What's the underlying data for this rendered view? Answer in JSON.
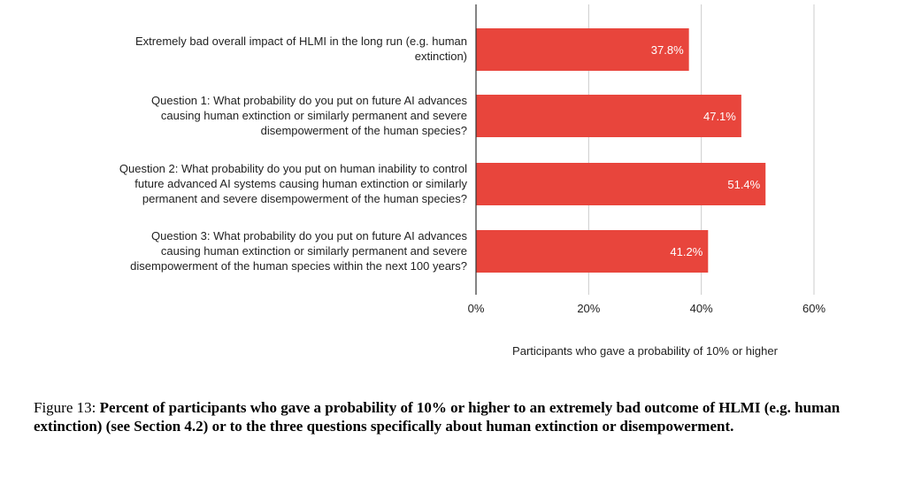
{
  "chart_data": {
    "type": "bar",
    "orientation": "horizontal",
    "categories": [
      "Extremely bad overall impact of HLMI in the long run (e.g. human\nextinction)",
      "Question 1: What probability do you put on future AI advances\ncausing human extinction or similarly permanent and severe\ndisempowerment of the human species?",
      "Question 2: What probability do you put on human inability to control\nfuture advanced AI systems causing human extinction or similarly\npermanent and severe disempowerment of the human species?",
      "Question 3: What probability do you put on future AI advances\ncausing human extinction or similarly permanent and severe\ndisempowerment of the human species within the next 100 years?"
    ],
    "values": [
      37.8,
      47.1,
      51.4,
      41.2
    ],
    "value_labels": [
      "37.8%",
      "47.1%",
      "51.4%",
      "41.2%"
    ],
    "xlim": [
      0,
      60
    ],
    "ticks": [
      0,
      20,
      40,
      60
    ],
    "tick_labels": [
      "0%",
      "20%",
      "40%",
      "60%"
    ],
    "xlabel": "Participants who gave a probability of 10% or higher",
    "ylabel": "",
    "grid": true,
    "bar_color": "#E8453C",
    "label_color": "#ffffff"
  },
  "caption": {
    "prefix": "Figure 13: ",
    "text": "Percent of participants who gave a probability of 10% or higher to an extremely bad outcome of HLMI (e.g. human extinction) (see Section 4.2) or to the three questions specifically about human extinction or disempowerment."
  }
}
